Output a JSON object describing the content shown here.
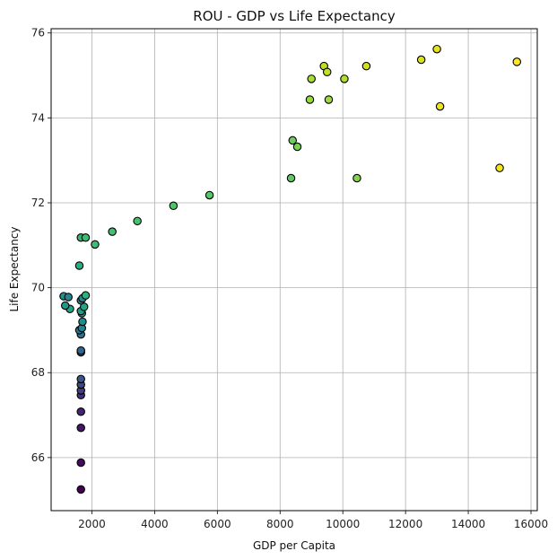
{
  "chart_data": {
    "type": "scatter",
    "title": "ROU - GDP vs Life Expectancy",
    "xlabel": "GDP per Capita",
    "ylabel": "Life Expectancy",
    "xlim": [
      700,
      16200
    ],
    "ylim": [
      64.75,
      76.1
    ],
    "xticks": [
      2000,
      4000,
      6000,
      8000,
      10000,
      12000,
      14000,
      16000
    ],
    "yticks": [
      66,
      68,
      70,
      72,
      74,
      76
    ],
    "grid": true,
    "colormap": "viridis (by point order / year)",
    "marker_edge_color": "#000000",
    "points": [
      {
        "x": 1650,
        "y": 65.25,
        "color": "#440154"
      },
      {
        "x": 1650,
        "y": 65.88,
        "color": "#450a5f"
      },
      {
        "x": 1650,
        "y": 66.7,
        "color": "#46166a"
      },
      {
        "x": 1650,
        "y": 67.08,
        "color": "#472373"
      },
      {
        "x": 1650,
        "y": 67.47,
        "color": "#45307c"
      },
      {
        "x": 1650,
        "y": 67.58,
        "color": "#423c82"
      },
      {
        "x": 1650,
        "y": 67.72,
        "color": "#3e4887"
      },
      {
        "x": 1650,
        "y": 67.85,
        "color": "#3a538b"
      },
      {
        "x": 1650,
        "y": 68.48,
        "color": "#355d8c"
      },
      {
        "x": 1650,
        "y": 68.52,
        "color": "#31678e"
      },
      {
        "x": 1650,
        "y": 68.9,
        "color": "#2d718e"
      },
      {
        "x": 1600,
        "y": 69.0,
        "color": "#297a8e"
      },
      {
        "x": 1680,
        "y": 69.05,
        "color": "#26838e"
      },
      {
        "x": 1700,
        "y": 69.2,
        "color": "#228c8d"
      },
      {
        "x": 1680,
        "y": 69.4,
        "color": "#21958b"
      },
      {
        "x": 1650,
        "y": 69.45,
        "color": "#1f9e89"
      },
      {
        "x": 1750,
        "y": 69.55,
        "color": "#22a785"
      },
      {
        "x": 1300,
        "y": 69.5,
        "color": "#20a486"
      },
      {
        "x": 1150,
        "y": 69.58,
        "color": "#1f9a8a"
      },
      {
        "x": 1100,
        "y": 69.8,
        "color": "#21918c"
      },
      {
        "x": 1250,
        "y": 69.78,
        "color": "#25858e"
      },
      {
        "x": 1650,
        "y": 69.7,
        "color": "#26818e"
      },
      {
        "x": 1700,
        "y": 69.75,
        "color": "#24878e"
      },
      {
        "x": 1800,
        "y": 69.82,
        "color": "#2db27d"
      },
      {
        "x": 1600,
        "y": 70.52,
        "color": "#29af7f"
      },
      {
        "x": 1650,
        "y": 71.18,
        "color": "#34b679"
      },
      {
        "x": 1800,
        "y": 71.18,
        "color": "#3bbb75"
      },
      {
        "x": 2100,
        "y": 71.02,
        "color": "#40bd72"
      },
      {
        "x": 2650,
        "y": 71.32,
        "color": "#44bf70"
      },
      {
        "x": 3450,
        "y": 71.57,
        "color": "#48c16e"
      },
      {
        "x": 4600,
        "y": 71.93,
        "color": "#4ec36b"
      },
      {
        "x": 5750,
        "y": 72.18,
        "color": "#56c667"
      },
      {
        "x": 8350,
        "y": 72.58,
        "color": "#5ec962"
      },
      {
        "x": 8400,
        "y": 73.47,
        "color": "#6ccd5a"
      },
      {
        "x": 8550,
        "y": 73.32,
        "color": "#75d054"
      },
      {
        "x": 10450,
        "y": 72.58,
        "color": "#84d44b"
      },
      {
        "x": 8950,
        "y": 74.43,
        "color": "#95d840"
      },
      {
        "x": 9550,
        "y": 74.43,
        "color": "#9fda3a"
      },
      {
        "x": 9000,
        "y": 74.92,
        "color": "#a8db34"
      },
      {
        "x": 10050,
        "y": 74.92,
        "color": "#b2dd2d"
      },
      {
        "x": 9400,
        "y": 75.22,
        "color": "#bddf26"
      },
      {
        "x": 9500,
        "y": 75.08,
        "color": "#c5e021"
      },
      {
        "x": 10750,
        "y": 75.22,
        "color": "#d0e11c"
      },
      {
        "x": 12500,
        "y": 75.37,
        "color": "#dae319"
      },
      {
        "x": 13000,
        "y": 75.62,
        "color": "#e5e419"
      },
      {
        "x": 13100,
        "y": 74.27,
        "color": "#ece51b"
      },
      {
        "x": 15000,
        "y": 72.82,
        "color": "#f4e61e"
      },
      {
        "x": 15550,
        "y": 75.32,
        "color": "#fde725"
      }
    ]
  }
}
